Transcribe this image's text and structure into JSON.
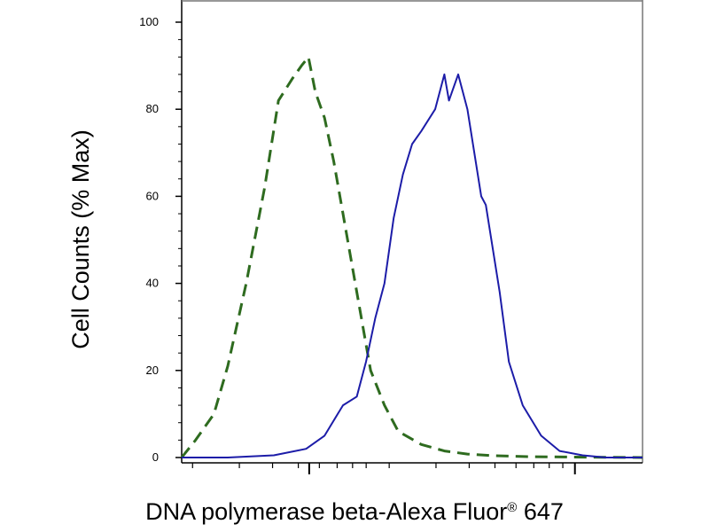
{
  "chart_data": {
    "type": "line",
    "title": "",
    "ylabel": "Cell Counts (% Max)",
    "xlabel_main": "DNA polymerase beta-Alexa Fluor",
    "xlabel_sup": "®",
    "xlabel_tail": " 647",
    "x_scale": "log",
    "x_tick_labels": [],
    "ylim": [
      0,
      100
    ],
    "yticks": [
      0,
      20,
      40,
      60,
      80,
      100
    ],
    "y_tick_labels": [
      "0",
      "20",
      "40",
      "60",
      "80",
      "100"
    ],
    "grid": false,
    "legend": "none",
    "series": [
      {
        "style": "dashed",
        "color": "#2e6b1f",
        "x": [
          0.0,
          0.03,
          0.07,
          0.1,
          0.14,
          0.18,
          0.21,
          0.24,
          0.26,
          0.275,
          0.29,
          0.31,
          0.33,
          0.35,
          0.37,
          0.39,
          0.41,
          0.44,
          0.47,
          0.52,
          0.57,
          0.62,
          0.68,
          0.75,
          0.85,
          1.0
        ],
        "y": [
          0,
          4,
          10,
          21,
          40,
          62,
          82,
          87,
          90,
          92,
          84,
          78,
          68,
          56,
          44,
          32,
          20,
          12,
          6,
          3,
          1.5,
          0.8,
          0.4,
          0.2,
          0.1,
          0
        ]
      },
      {
        "style": "solid",
        "color": "#1c1ca8",
        "x": [
          0.0,
          0.1,
          0.2,
          0.27,
          0.31,
          0.35,
          0.38,
          0.4,
          0.42,
          0.44,
          0.46,
          0.48,
          0.5,
          0.52,
          0.55,
          0.57,
          0.58,
          0.6,
          0.62,
          0.635,
          0.65,
          0.66,
          0.675,
          0.69,
          0.71,
          0.74,
          0.78,
          0.82,
          0.87,
          0.92,
          1.0
        ],
        "y": [
          0,
          0,
          0.5,
          2,
          5,
          12,
          14,
          22,
          32,
          40,
          55,
          65,
          72,
          75,
          80,
          88,
          82,
          88,
          80,
          70,
          60,
          58,
          48,
          38,
          22,
          12,
          5,
          1.5,
          0.5,
          0,
          0
        ]
      }
    ]
  }
}
